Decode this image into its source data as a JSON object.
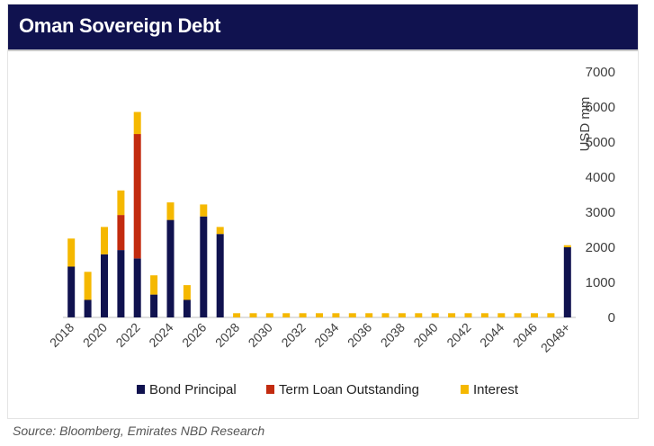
{
  "header": {
    "title": "Oman Sovereign Debt"
  },
  "source": "Source: Bloomberg, Emirates NBD Research",
  "colors": {
    "bond": "#10124f",
    "term_loan": "#c22b0f",
    "interest": "#f5b800",
    "header_bg": "#10124f"
  },
  "chart_data": {
    "type": "bar",
    "stacked": true,
    "title": "",
    "xlabel": "",
    "ylabel": "USD mm",
    "ylim": [
      0,
      7000
    ],
    "yticks": [
      0,
      1000,
      2000,
      3000,
      4000,
      5000,
      6000,
      7000
    ],
    "y_axis_position": "right",
    "grid": false,
    "legend": "bottom",
    "categories": [
      "2018",
      "2019",
      "2020",
      "2021",
      "2022",
      "2023",
      "2024",
      "2025",
      "2026",
      "2027",
      "2028",
      "2029",
      "2030",
      "2031",
      "2032",
      "2033",
      "2034",
      "2035",
      "2036",
      "2037",
      "2038",
      "2039",
      "2040",
      "2041",
      "2042",
      "2043",
      "2044",
      "2045",
      "2046",
      "2047",
      "2048+"
    ],
    "tick_labels": [
      "2018",
      "",
      "2020",
      "",
      "2022",
      "",
      "2024",
      "",
      "2026",
      "",
      "2028",
      "",
      "2030",
      "",
      "2032",
      "",
      "2034",
      "",
      "2036",
      "",
      "2038",
      "",
      "2040",
      "",
      "2042",
      "",
      "2044",
      "",
      "2046",
      "",
      "2048+"
    ],
    "series": [
      {
        "name": "Bond Principal",
        "values": [
          1450,
          500,
          1800,
          1920,
          1680,
          650,
          2780,
          500,
          2880,
          2380,
          0,
          0,
          0,
          0,
          0,
          0,
          0,
          0,
          0,
          0,
          0,
          0,
          0,
          0,
          0,
          0,
          0,
          0,
          0,
          0,
          2000
        ]
      },
      {
        "name": "Term Loan Outstanding",
        "values": [
          0,
          0,
          0,
          1000,
          3550,
          0,
          0,
          0,
          0,
          0,
          0,
          0,
          0,
          0,
          0,
          0,
          0,
          0,
          0,
          0,
          0,
          0,
          0,
          0,
          0,
          0,
          0,
          0,
          0,
          0,
          0
        ]
      },
      {
        "name": "Interest",
        "values": [
          800,
          800,
          780,
          700,
          630,
          550,
          500,
          420,
          340,
          200,
          120,
          120,
          120,
          120,
          120,
          120,
          120,
          120,
          120,
          120,
          120,
          120,
          120,
          120,
          120,
          120,
          120,
          120,
          120,
          120,
          60
        ]
      }
    ]
  }
}
